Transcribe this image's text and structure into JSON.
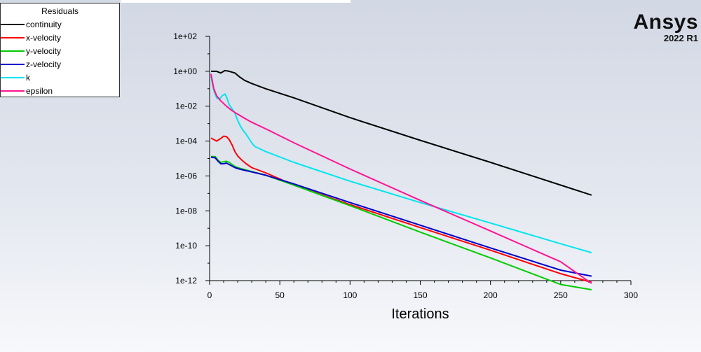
{
  "logo": {
    "brand": "Ansys",
    "version": "2022 R1"
  },
  "chart_data": {
    "type": "line",
    "title": "Residuals",
    "xlabel": "Iterations",
    "ylabel": "",
    "xlim": [
      0,
      300
    ],
    "ylim": [
      1e-12,
      100
    ],
    "yscale": "log",
    "grid": false,
    "legend_position": "top-left",
    "x_ticks": [
      "0",
      "50",
      "100",
      "150",
      "200",
      "250",
      "300"
    ],
    "y_ticks": [
      "1e+02",
      "1e+00",
      "1e-02",
      "1e-04",
      "1e-06",
      "1e-08",
      "1e-10",
      "1e-12"
    ],
    "series": [
      {
        "name": "continuity",
        "color": "#000000",
        "x": [
          1,
          5,
          8,
          11,
          14,
          18,
          21,
          25,
          30,
          40,
          60,
          100,
          150,
          200,
          250,
          272
        ],
        "y": [
          1.0,
          1.0,
          0.8,
          1.1,
          1.0,
          0.8,
          0.5,
          0.3,
          0.2,
          0.1,
          0.03,
          0.0022,
          0.00011,
          6e-06,
          3e-07,
          8e-08
        ]
      },
      {
        "name": "x-velocity",
        "color": "#ff0000",
        "x": [
          1,
          5,
          8,
          10,
          12,
          14,
          16,
          18,
          20,
          23,
          26,
          30,
          40,
          60,
          100,
          150,
          200,
          250,
          272
        ],
        "y": [
          0.00015,
          0.0001,
          0.00014,
          0.00019,
          0.00018,
          0.00012,
          6e-05,
          2.5e-05,
          1.4e-05,
          8e-06,
          5e-06,
          3e-06,
          1.5e-06,
          3e-07,
          2.3e-08,
          1.1e-09,
          5.5e-11,
          2.5e-12,
          8e-13
        ]
      },
      {
        "name": "y-velocity",
        "color": "#00cc00",
        "x": [
          1,
          4,
          6,
          8,
          10,
          12,
          14,
          18,
          22,
          30,
          40,
          60,
          100,
          150,
          200,
          250,
          272
        ],
        "y": [
          1.3e-05,
          1.3e-05,
          8e-06,
          6e-06,
          6.5e-06,
          7e-06,
          6e-06,
          3.5e-06,
          2.7e-06,
          1.8e-06,
          1.1e-06,
          3e-07,
          2e-08,
          6e-10,
          2e-11,
          6e-13,
          3e-13
        ]
      },
      {
        "name": "z-velocity",
        "color": "#0000cc",
        "x": [
          1,
          4,
          6,
          8,
          10,
          12,
          14,
          18,
          22,
          30,
          40,
          60,
          100,
          150,
          200,
          250,
          272
        ],
        "y": [
          1.2e-05,
          1.1e-05,
          7e-06,
          5e-06,
          5e-06,
          5.5e-06,
          4.5e-06,
          3e-06,
          2.4e-06,
          1.7e-06,
          1.1e-06,
          3.5e-07,
          3e-08,
          1.5e-09,
          7.5e-11,
          4e-12,
          1.8e-12
        ]
      },
      {
        "name": "k",
        "color": "#00e5ee",
        "x": [
          1,
          3,
          5,
          7,
          9,
          11,
          12,
          14,
          16,
          18,
          20,
          22,
          24,
          26,
          28,
          30,
          32,
          40,
          60,
          100,
          150,
          200,
          250,
          272
        ],
        "y": [
          0.5,
          0.08,
          0.03,
          0.025,
          0.04,
          0.05,
          0.035,
          0.012,
          0.007,
          0.004,
          0.0015,
          0.0007,
          0.0004,
          0.00025,
          0.00014,
          8e-05,
          5e-05,
          2.5e-05,
          6e-06,
          5e-07,
          3e-08,
          2e-09,
          1.3e-10,
          4e-11
        ]
      },
      {
        "name": "epsilon",
        "color": "#ff1493",
        "x": [
          1,
          3,
          5,
          8,
          12,
          16,
          20,
          25,
          30,
          40,
          60,
          100,
          150,
          200,
          250,
          272
        ],
        "y": [
          0.7,
          0.1,
          0.04,
          0.02,
          0.01,
          0.0055,
          0.0035,
          0.002,
          0.0012,
          0.0005,
          8e-05,
          2.5e-06,
          4e-08,
          7e-10,
          1.2e-11,
          7e-13
        ]
      }
    ]
  }
}
